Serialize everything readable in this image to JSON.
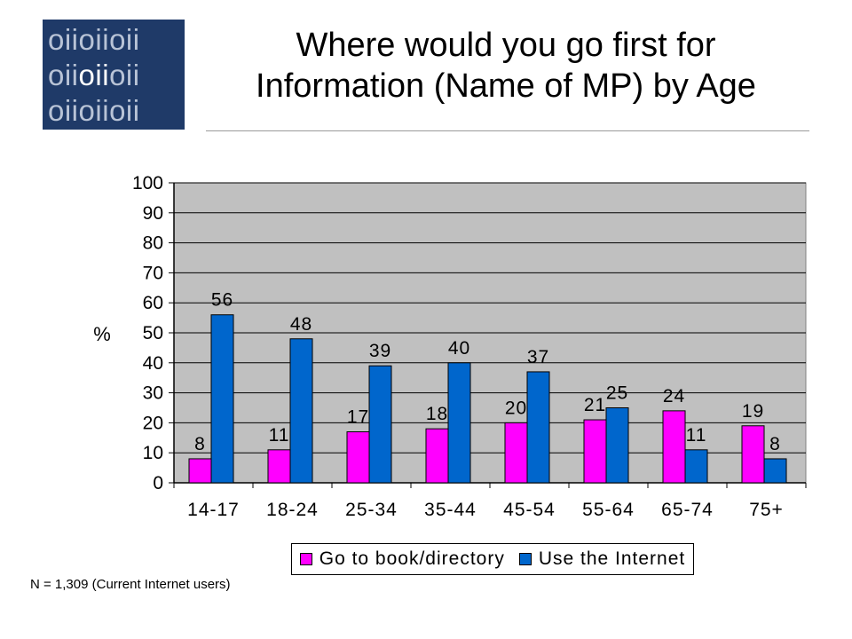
{
  "logo": {
    "rows": [
      [
        "oii",
        "o",
        "ii",
        "o",
        "ii"
      ],
      [
        "oii",
        "o",
        "ii",
        "o",
        "ii"
      ],
      [
        "oii",
        "o",
        "ii",
        "o",
        "ii"
      ]
    ]
  },
  "title_line1": "Where would you go first for",
  "title_line2": "Information (Name of MP) by Age",
  "footnote": "N = 1,309 (Current Internet users)",
  "colors": {
    "plot_bg": "#c0c0c0",
    "book": "#ff00ff",
    "internet": "#0066cc",
    "logo_bg": "#1f3a68"
  },
  "chart_data": {
    "type": "bar",
    "categories": [
      "14-17",
      "18-24",
      "25-34",
      "35-44",
      "45-54",
      "55-64",
      "65-74",
      "75+"
    ],
    "series": [
      {
        "name": "Go to book/directory",
        "values": [
          8,
          11,
          17,
          18,
          20,
          21,
          24,
          19
        ]
      },
      {
        "name": "Use the Internet",
        "values": [
          56,
          48,
          39,
          40,
          37,
          25,
          11,
          8
        ]
      }
    ],
    "ylabel": "%",
    "ylim": [
      0,
      100
    ],
    "yticks": [
      "0",
      "10",
      "20",
      "30",
      "40",
      "50",
      "60",
      "70",
      "80",
      "90",
      "100"
    ],
    "grid": true,
    "legend_position": "bottom"
  }
}
